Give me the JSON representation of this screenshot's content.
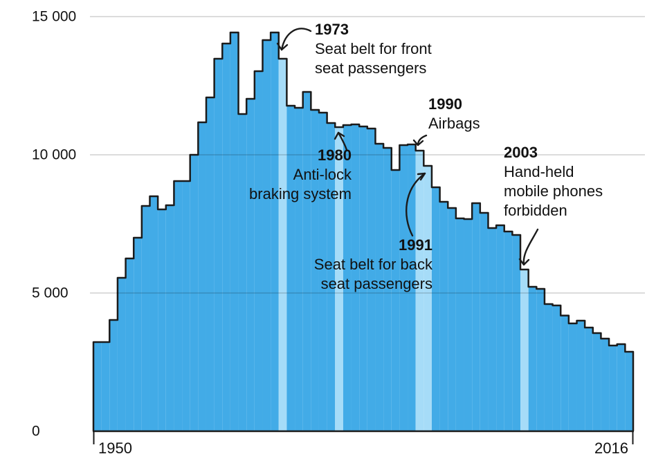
{
  "chart_data": {
    "type": "bar",
    "title": "",
    "xlabel": "",
    "ylabel": "",
    "x": [
      1950,
      1951,
      1952,
      1953,
      1954,
      1955,
      1956,
      1957,
      1958,
      1959,
      1960,
      1961,
      1962,
      1963,
      1964,
      1965,
      1966,
      1967,
      1968,
      1969,
      1970,
      1971,
      1972,
      1973,
      1974,
      1975,
      1976,
      1977,
      1978,
      1979,
      1980,
      1981,
      1982,
      1983,
      1984,
      1985,
      1986,
      1987,
      1988,
      1989,
      1990,
      1991,
      1992,
      1993,
      1994,
      1995,
      1996,
      1997,
      1998,
      1999,
      2000,
      2001,
      2002,
      2003,
      2004,
      2005,
      2006,
      2007,
      2008,
      2009,
      2010,
      2011,
      2012,
      2013,
      2014,
      2015,
      2016
    ],
    "values": [
      3225,
      3225,
      4025,
      5550,
      6250,
      7000,
      8150,
      8500,
      8025,
      8175,
      9050,
      9050,
      10000,
      11175,
      12075,
      13475,
      14025,
      14425,
      11475,
      12025,
      13025,
      14150,
      14425,
      13475,
      11775,
      11700,
      12275,
      11625,
      11525,
      11150,
      11000,
      11075,
      11100,
      11025,
      10950,
      10400,
      10250,
      9450,
      10350,
      10375,
      10150,
      9600,
      8825,
      8300,
      8075,
      7700,
      7675,
      8250,
      7900,
      7350,
      7450,
      7225,
      7100,
      5850,
      5225,
      5150,
      4600,
      4550,
      4185,
      3900,
      4000,
      3750,
      3550,
      3350,
      3100,
      3150,
      2875
    ],
    "highlighted_years": [
      1973,
      1980,
      1990,
      1991,
      2003
    ],
    "ylim": [
      0,
      15000
    ],
    "yticks": [
      0,
      5000,
      10000,
      15000
    ],
    "ytick_labels": [
      "0",
      "5 000",
      "10 000",
      "15 000"
    ],
    "xtick_labels": [
      "1950",
      "2016"
    ],
    "grid": "horizontal",
    "legend": "none",
    "colors": {
      "bar": "#42abe7",
      "bar_highlight": "#a6dcf8",
      "outline": "#1b1b1b",
      "gridline": "rgba(0,0,0,0.18)",
      "axis": "#1b1b1b",
      "text": "#111111"
    }
  },
  "axis": {
    "x_min_label": "1950",
    "x_max_label": "2016"
  },
  "annotations": [
    {
      "year": "1973",
      "lines": [
        "Seat belt for front",
        "seat passengers"
      ]
    },
    {
      "year": "1980",
      "lines": [
        "Anti-lock",
        "braking system"
      ]
    },
    {
      "year": "1990",
      "lines": [
        "Airbags"
      ]
    },
    {
      "year": "1991",
      "lines": [
        "Seat belt for back",
        "seat passengers"
      ]
    },
    {
      "year": "2003",
      "lines": [
        "Hand-held",
        "mobile phones",
        "forbidden"
      ]
    }
  ]
}
